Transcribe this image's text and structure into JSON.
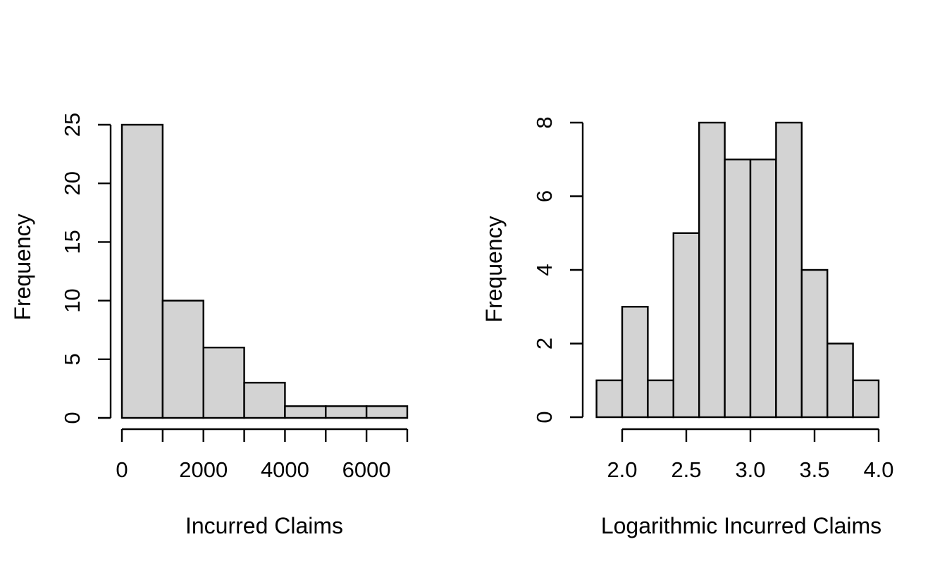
{
  "figure": {
    "background": "#ffffff",
    "bar_fill": "#d3d3d3",
    "bar_stroke": "#000000",
    "axis_color": "#000000",
    "text_color": "#000000"
  },
  "chart_data": [
    {
      "type": "bar",
      "subtype": "histogram",
      "title": "",
      "xlabel": "Incurred Claims",
      "ylabel": "Frequency",
      "bin_edges": [
        0,
        1000,
        2000,
        3000,
        4000,
        5000,
        6000,
        7000
      ],
      "values": [
        25,
        10,
        6,
        3,
        1,
        1,
        1
      ],
      "xlim": [
        0,
        7000
      ],
      "ylim": [
        0,
        25
      ],
      "x_tick_values": [
        0,
        1000,
        2000,
        3000,
        4000,
        5000,
        6000,
        7000
      ],
      "x_tick_labels": [
        "0",
        "",
        "2000",
        "",
        "4000",
        "",
        "6000",
        ""
      ],
      "y_tick_values": [
        0,
        5,
        10,
        15,
        20,
        25
      ],
      "y_tick_labels": [
        "0",
        "5",
        "10",
        "15",
        "20",
        "25"
      ],
      "grid": false,
      "legend_position": "none"
    },
    {
      "type": "bar",
      "subtype": "histogram",
      "title": "",
      "xlabel": "Logarithmic Incurred Claims",
      "ylabel": "Frequency",
      "bin_edges": [
        1.8,
        2.0,
        2.2,
        2.4,
        2.6,
        2.8,
        3.0,
        3.2,
        3.4,
        3.6,
        3.8,
        4.0
      ],
      "values": [
        1,
        3,
        1,
        5,
        8,
        7,
        7,
        8,
        4,
        2,
        1
      ],
      "xlim": [
        1.8,
        4.0
      ],
      "ylim": [
        0,
        8
      ],
      "x_tick_values": [
        2.0,
        2.5,
        3.0,
        3.5,
        4.0
      ],
      "x_tick_labels": [
        "2.0",
        "2.5",
        "3.0",
        "3.5",
        "4.0"
      ],
      "y_tick_values": [
        0,
        2,
        4,
        6,
        8
      ],
      "y_tick_labels": [
        "0",
        "2",
        "4",
        "6",
        "8"
      ],
      "grid": false,
      "legend_position": "none"
    }
  ]
}
